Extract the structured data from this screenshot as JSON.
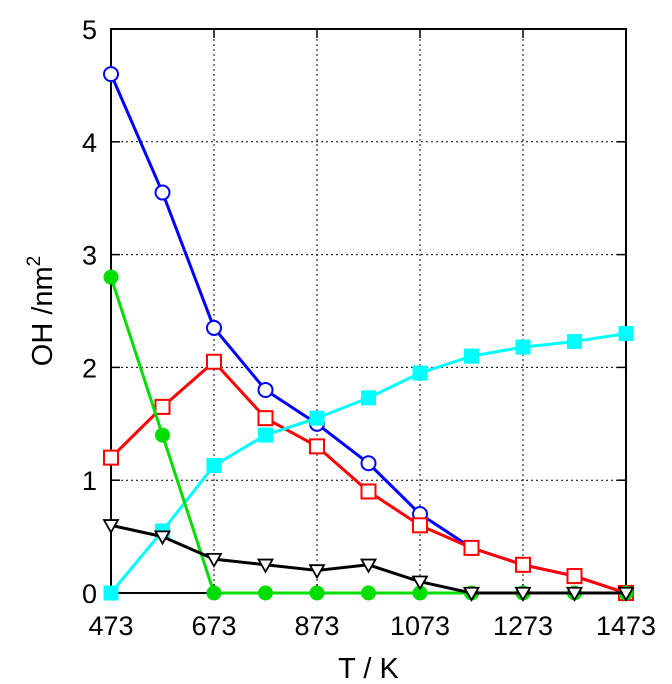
{
  "chart_data": {
    "type": "line",
    "xlabel": "T / K",
    "ylabel": "OH /nm",
    "ylabel_superscript": "2",
    "xlim": [
      473,
      1473
    ],
    "ylim": [
      0,
      5
    ],
    "xticks": [
      "473",
      "673",
      "873",
      "1073",
      "1273",
      "1473"
    ],
    "yticks": [
      "0",
      "1",
      "2",
      "3",
      "4",
      "5"
    ],
    "grid": true,
    "x": [
      473,
      573,
      673,
      773,
      873,
      973,
      1073,
      1173,
      1273,
      1373,
      1473
    ],
    "series": [
      {
        "color": "#0000ff",
        "marker": "open-circle",
        "values": [
          4.6,
          3.55,
          2.35,
          1.8,
          1.5,
          1.15,
          0.7,
          0.4,
          0.25,
          0.15,
          0.0
        ]
      },
      {
        "color": "#ff0000",
        "marker": "open-square",
        "values": [
          1.2,
          1.65,
          2.05,
          1.55,
          1.3,
          0.9,
          0.6,
          0.4,
          0.25,
          0.15,
          0.0
        ]
      },
      {
        "color": "#00ffff",
        "marker": "filled-square",
        "values": [
          0.0,
          0.55,
          1.13,
          1.4,
          1.55,
          1.73,
          1.95,
          2.1,
          2.18,
          2.23,
          2.3
        ]
      },
      {
        "color": "#00dd00",
        "marker": "filled-circle",
        "values": [
          2.8,
          1.4,
          0.0,
          0.0,
          0.0,
          0.0,
          0.0,
          0.0,
          0.0,
          0.0,
          0.0
        ]
      },
      {
        "color": "#000000",
        "marker": "open-triangle-down",
        "values": [
          0.6,
          0.5,
          0.3,
          0.25,
          0.2,
          0.25,
          0.1,
          0.0,
          0.0,
          0.0,
          0.0
        ]
      }
    ]
  }
}
